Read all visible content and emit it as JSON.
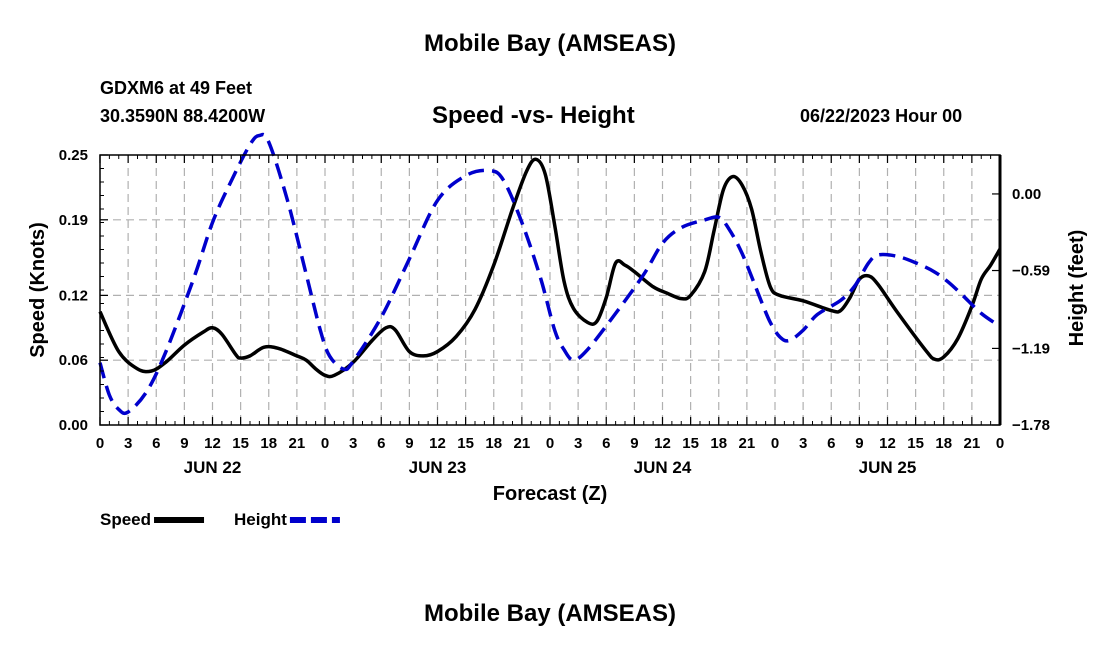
{
  "header": {
    "title": "Mobile Bay (AMSEAS)",
    "station": "GDXM6 at 49 Feet",
    "coords": "30.3590N  88.4200W",
    "subtitle": "Speed -vs- Height",
    "timestamp": "06/22/2023 Hour 00",
    "bottom_title": "Mobile Bay (AMSEAS)"
  },
  "chart_data": {
    "type": "line",
    "title": "Speed -vs- Height",
    "xlabel": "Forecast (Z)",
    "ylabel": "Speed (Knots)",
    "y2label": "Height (feet)",
    "x_range_hours": [
      0,
      96
    ],
    "ylim": [
      0,
      0.25
    ],
    "y2lim": [
      -1.78,
      0.3
    ],
    "x_tick_hours": [
      0,
      3,
      6,
      9,
      12,
      15,
      18,
      21,
      24,
      27,
      30,
      33,
      36,
      39,
      42,
      45,
      48,
      51,
      54,
      57,
      60,
      63,
      66,
      69,
      72,
      75,
      78,
      81,
      84,
      87,
      90,
      93,
      96
    ],
    "x_tick_labels": [
      "0",
      "3",
      "6",
      "9",
      "12",
      "15",
      "18",
      "21",
      "0",
      "3",
      "6",
      "9",
      "12",
      "15",
      "18",
      "21",
      "0",
      "3",
      "6",
      "9",
      "12",
      "15",
      "18",
      "21",
      "0",
      "3",
      "6",
      "9",
      "12",
      "15",
      "18",
      "21",
      "0"
    ],
    "day_labels": [
      {
        "hour": 12,
        "label": "JUN 22"
      },
      {
        "hour": 36,
        "label": "JUN 23"
      },
      {
        "hour": 60,
        "label": "JUN 24"
      },
      {
        "hour": 84,
        "label": "JUN 25"
      }
    ],
    "y_ticks": [
      0.0,
      0.06,
      0.12,
      0.19,
      0.25
    ],
    "y_tick_labels": [
      "0.00",
      "0.06",
      "0.12",
      "0.19",
      "0.25"
    ],
    "y2_ticks": [
      -1.78,
      -1.19,
      -0.59,
      0.0
    ],
    "y2_tick_labels": [
      "−1.78",
      "−1.19",
      "−0.59",
      "0.00"
    ],
    "grid": true,
    "legend_position": "bottom-left",
    "series": [
      {
        "name": "Speed",
        "axis": "left",
        "color": "#000000",
        "dash": "solid",
        "points": [
          [
            0,
            0.105
          ],
          [
            2,
            0.068
          ],
          [
            4,
            0.052
          ],
          [
            5.5,
            0.05
          ],
          [
            7,
            0.058
          ],
          [
            9,
            0.074
          ],
          [
            11,
            0.086
          ],
          [
            12,
            0.09
          ],
          [
            13,
            0.084
          ],
          [
            14.5,
            0.065
          ],
          [
            15,
            0.062
          ],
          [
            16,
            0.064
          ],
          [
            17.5,
            0.072
          ],
          [
            19,
            0.071
          ],
          [
            21,
            0.064
          ],
          [
            22,
            0.06
          ],
          [
            23,
            0.052
          ],
          [
            24,
            0.046
          ],
          [
            25,
            0.046
          ],
          [
            27,
            0.058
          ],
          [
            29,
            0.078
          ],
          [
            30.5,
            0.09
          ],
          [
            31.5,
            0.088
          ],
          [
            33,
            0.068
          ],
          [
            34.5,
            0.064
          ],
          [
            36,
            0.068
          ],
          [
            38,
            0.082
          ],
          [
            40,
            0.107
          ],
          [
            42,
            0.148
          ],
          [
            44,
            0.2
          ],
          [
            45.5,
            0.235
          ],
          [
            46.5,
            0.246
          ],
          [
            47.5,
            0.232
          ],
          [
            48.5,
            0.185
          ],
          [
            49.5,
            0.133
          ],
          [
            50.5,
            0.108
          ],
          [
            52,
            0.095
          ],
          [
            53,
            0.096
          ],
          [
            54,
            0.118
          ],
          [
            55,
            0.15
          ],
          [
            56,
            0.148
          ],
          [
            57,
            0.142
          ],
          [
            59,
            0.128
          ],
          [
            60.5,
            0.122
          ],
          [
            62,
            0.117
          ],
          [
            63,
            0.12
          ],
          [
            64.5,
            0.142
          ],
          [
            65.5,
            0.18
          ],
          [
            66.5,
            0.218
          ],
          [
            67.5,
            0.23
          ],
          [
            68.5,
            0.222
          ],
          [
            69.5,
            0.2
          ],
          [
            70.5,
            0.16
          ],
          [
            71.5,
            0.128
          ],
          [
            72.5,
            0.12
          ],
          [
            75,
            0.115
          ],
          [
            78,
            0.106
          ],
          [
            79,
            0.106
          ],
          [
            80,
            0.118
          ],
          [
            81,
            0.135
          ],
          [
            82,
            0.138
          ],
          [
            83,
            0.13
          ],
          [
            85,
            0.105
          ],
          [
            88,
            0.07
          ],
          [
            89,
            0.061
          ],
          [
            90,
            0.063
          ],
          [
            91.5,
            0.08
          ],
          [
            93,
            0.11
          ],
          [
            94,
            0.135
          ],
          [
            95,
            0.148
          ],
          [
            96,
            0.163
          ]
        ]
      },
      {
        "name": "Height",
        "axis": "right",
        "color": "#0000cc",
        "dash": "dashed",
        "points": [
          [
            0,
            -1.3
          ],
          [
            1,
            -1.55
          ],
          [
            2,
            -1.66
          ],
          [
            3,
            -1.68
          ],
          [
            5,
            -1.52
          ],
          [
            7,
            -1.22
          ],
          [
            10,
            -0.65
          ],
          [
            12,
            -0.22
          ],
          [
            14,
            0.1
          ],
          [
            16,
            0.38
          ],
          [
            17,
            0.45
          ],
          [
            18,
            0.4
          ],
          [
            20,
            -0.05
          ],
          [
            22,
            -0.62
          ],
          [
            23.5,
            -1.05
          ],
          [
            24.5,
            -1.25
          ],
          [
            26,
            -1.35
          ],
          [
            27,
            -1.29
          ],
          [
            30,
            -0.95
          ],
          [
            33,
            -0.5
          ],
          [
            36,
            -0.05
          ],
          [
            39,
            0.14
          ],
          [
            41.5,
            0.18
          ],
          [
            43,
            0.11
          ],
          [
            45,
            -0.22
          ],
          [
            47,
            -0.65
          ],
          [
            48.5,
            -1.05
          ],
          [
            49.5,
            -1.2
          ],
          [
            50.5,
            -1.28
          ],
          [
            52,
            -1.2
          ],
          [
            55,
            -0.92
          ],
          [
            58,
            -0.62
          ],
          [
            60,
            -0.38
          ],
          [
            62,
            -0.26
          ],
          [
            64.5,
            -0.2
          ],
          [
            66,
            -0.18
          ],
          [
            67,
            -0.26
          ],
          [
            68.5,
            -0.46
          ],
          [
            70.5,
            -0.82
          ],
          [
            71.5,
            -0.99
          ],
          [
            72.5,
            -1.1
          ],
          [
            73.5,
            -1.13
          ],
          [
            75,
            -1.05
          ],
          [
            76.5,
            -0.93
          ],
          [
            79,
            -0.82
          ],
          [
            80.5,
            -0.71
          ],
          [
            82,
            -0.53
          ],
          [
            83,
            -0.47
          ],
          [
            85,
            -0.48
          ],
          [
            87,
            -0.53
          ],
          [
            89,
            -0.6
          ],
          [
            90.5,
            -0.68
          ],
          [
            92,
            -0.78
          ],
          [
            94,
            -0.92
          ],
          [
            96,
            -1.02
          ]
        ]
      }
    ]
  },
  "labels": {
    "xlabel": "Forecast (Z)",
    "ylabel": "Speed (Knots)",
    "y2label": "Height (feet)"
  },
  "legend": [
    {
      "label": "Speed",
      "color": "#000000",
      "dash": "solid"
    },
    {
      "label": "Height",
      "color": "#0000cc",
      "dash": "dashed"
    }
  ]
}
